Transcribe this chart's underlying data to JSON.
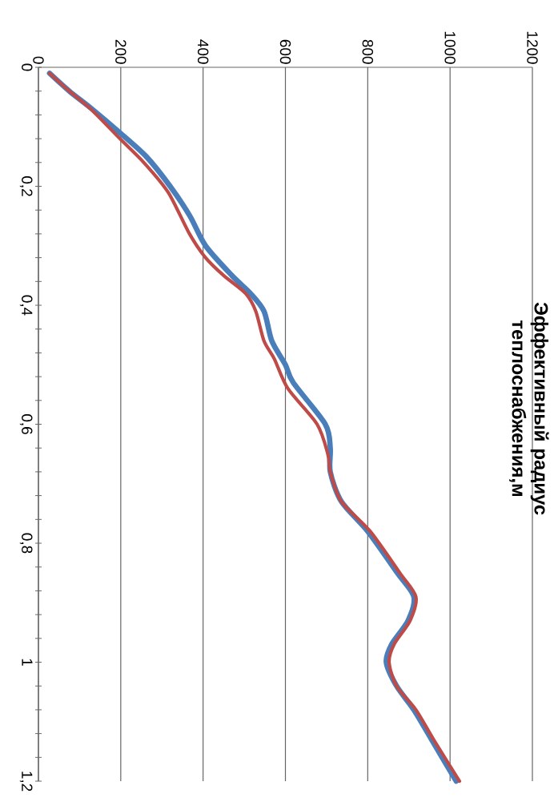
{
  "chart_data": {
    "type": "line",
    "title": "Эффективный радиус теплоснабжения,м",
    "xlim": [
      0,
      1200
    ],
    "xticks": [
      0,
      200,
      400,
      600,
      800,
      1000,
      1200
    ],
    "ylim": [
      1.2,
      0
    ],
    "yticks": [
      0,
      {
        "value": 0.04,
        "label": null
      },
      {
        "value": 0.08,
        "label": null
      },
      {
        "value": 0.12,
        "label": null
      },
      {
        "value": 0.16,
        "label": null
      },
      {
        "value": 0.2,
        "label": "0,2"
      },
      {
        "value": 0.24,
        "label": null
      },
      {
        "value": 0.28,
        "label": null
      },
      {
        "value": 0.32,
        "label": null
      },
      {
        "value": 0.36,
        "label": null
      },
      {
        "value": 0.4,
        "label": "0,4"
      },
      {
        "value": 0.44,
        "label": null
      },
      {
        "value": 0.48,
        "label": null
      },
      {
        "value": 0.52,
        "label": null
      },
      {
        "value": 0.56,
        "label": null
      },
      {
        "value": 0.6,
        "label": "0,6"
      },
      {
        "value": 0.64,
        "label": null
      },
      {
        "value": 0.68,
        "label": null
      },
      {
        "value": 0.72,
        "label": null
      },
      {
        "value": 0.76,
        "label": null
      },
      {
        "value": 0.8,
        "label": "0,8"
      },
      {
        "value": 0.84,
        "label": null
      },
      {
        "value": 0.88,
        "label": null
      },
      {
        "value": 0.92,
        "label": null
      },
      {
        "value": 0.96,
        "label": null
      },
      {
        "value": 1,
        "label": "1"
      },
      {
        "value": 1.04,
        "label": null
      },
      {
        "value": 1.08,
        "label": null
      },
      {
        "value": 1.12,
        "label": null
      },
      {
        "value": 1.16,
        "label": null
      },
      {
        "value": 1.2,
        "label": "1,2"
      }
    ],
    "grid": "x",
    "series": [
      {
        "color": "#4a7ebb",
        "x": [
          27,
          75,
          130,
          198,
          262,
          320,
          368,
          406,
          470,
          515,
          548,
          567,
          600,
          619,
          697,
          709,
          709,
          736,
          800,
          872,
          912,
          898,
          858,
          845,
          870,
          912,
          955,
          1015
        ],
        "values": [
          0.01,
          0.04,
          0.07,
          0.11,
          0.15,
          0.2,
          0.25,
          0.3,
          0.35,
          0.38,
          0.41,
          0.46,
          0.5,
          0.53,
          0.6,
          0.64,
          0.68,
          0.73,
          0.78,
          0.85,
          0.89,
          0.93,
          0.97,
          1.0,
          1.04,
          1.08,
          1.13,
          1.2
        ]
      },
      {
        "color": "#be4b48",
        "x": [
          27,
          75,
          127,
          198,
          256,
          315,
          367,
          406,
          450,
          503,
          528,
          548,
          573,
          606,
          677,
          703,
          709,
          736,
          806,
          878,
          917,
          903,
          864,
          852,
          870,
          917,
          960,
          1023
        ],
        "values": [
          0.01,
          0.04,
          0.07,
          0.12,
          0.16,
          0.21,
          0.28,
          0.32,
          0.35,
          0.38,
          0.41,
          0.46,
          0.49,
          0.54,
          0.6,
          0.65,
          0.68,
          0.73,
          0.78,
          0.85,
          0.89,
          0.93,
          0.97,
          1.0,
          1.04,
          1.08,
          1.13,
          1.2
        ]
      }
    ]
  }
}
